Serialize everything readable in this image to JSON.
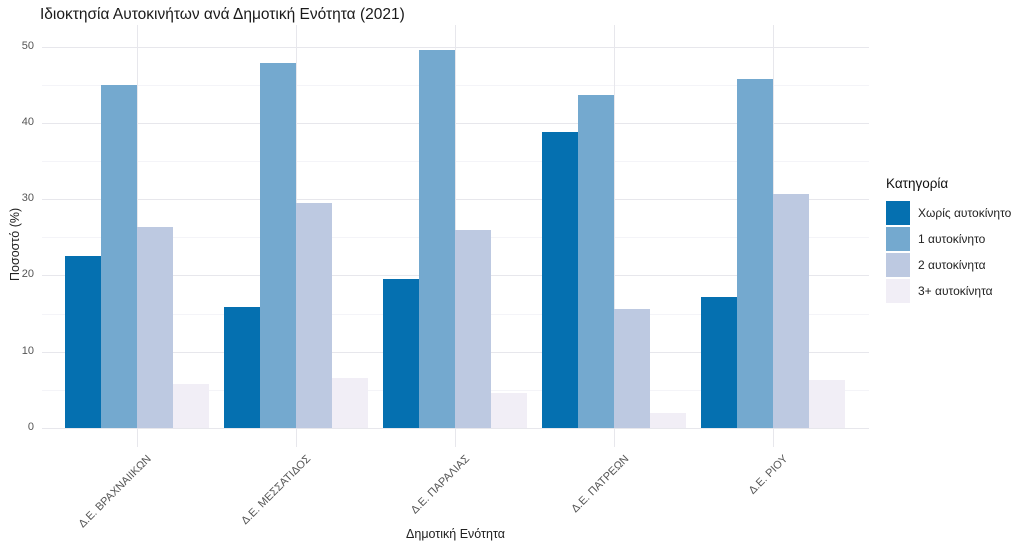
{
  "chart_data": {
    "type": "bar",
    "title": "Ιδιοκτησία Αυτοκινήτων ανά Δημοτική Ενότητα (2021)",
    "xlabel": "Δημοτική Ενότητα",
    "ylabel": "Ποσοστό (%)",
    "ylim": [
      0,
      50
    ],
    "yticks": [
      0,
      10,
      20,
      30,
      40,
      50
    ],
    "yticks_minor": [
      5,
      15,
      25,
      35,
      45
    ],
    "grid": "horizontal major+minor, vertical at category centers",
    "legend_title": "Κατηγορία",
    "legend_position": "right",
    "categories": [
      "Δ.Ε. ΒΡΑΧΝΑΙΙΚΩΝ",
      "Δ.Ε. ΜΕΣΣΑΤΙΔΟΣ",
      "Δ.Ε. ΠΑΡΑΛΙΑΣ",
      "Δ.Ε. ΠΑΤΡΕΩΝ",
      "Δ.Ε. ΡΙΟΥ"
    ],
    "series": [
      {
        "name": "Χωρίς αυτοκίνητο",
        "color": "#0570b0",
        "values": [
          22.5,
          15.9,
          19.5,
          38.8,
          17.2
        ]
      },
      {
        "name": "1 αυτοκίνητο",
        "color": "#74a9cf",
        "values": [
          45.0,
          47.9,
          49.6,
          43.6,
          45.7
        ]
      },
      {
        "name": "2 αυτοκίνητα",
        "color": "#bdc9e1",
        "values": [
          26.4,
          29.5,
          26.0,
          15.6,
          30.7
        ]
      },
      {
        "name": "3+ αυτοκίνητα",
        "color": "#f1eef6",
        "values": [
          5.8,
          6.6,
          4.6,
          2.0,
          6.3
        ]
      }
    ]
  },
  "style_colors": {
    "grid_major": "#e7e7ec",
    "grid_minor": "#f4f4f8",
    "axis_text": "#555555",
    "title_text": "#1a1a1a"
  }
}
